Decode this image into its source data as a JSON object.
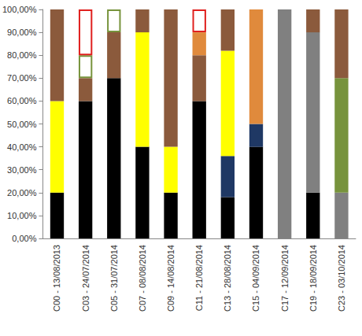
{
  "chart_data": {
    "type": "bar",
    "stacked": true,
    "grid": false,
    "data_labels": false,
    "categories": [
      "C00 - 13/08/2013",
      "C03 - 24/07/2014",
      "C05 - 31/07/2014",
      "C07 - 08/08/2014",
      "C09 - 14/08/2014",
      "C11 - 21/08/2014",
      "C13 - 28/08/2014",
      "C15 - 04/09/2014",
      "C17 - 12/09/2014",
      "C19 - 18/09/2014",
      "C23 - 03/10/2014"
    ],
    "ylim": [
      0,
      100
    ],
    "yticks": [
      {
        "value": 0,
        "label": "0,00%"
      },
      {
        "value": 10,
        "label": "10,00%"
      },
      {
        "value": 20,
        "label": "20,00%"
      },
      {
        "value": 30,
        "label": "30,00%"
      },
      {
        "value": 40,
        "label": "40,00%"
      },
      {
        "value": 50,
        "label": "50,00%"
      },
      {
        "value": 60,
        "label": "60,00%"
      },
      {
        "value": 70,
        "label": "70,00%"
      },
      {
        "value": 80,
        "label": "80,00%"
      },
      {
        "value": 90,
        "label": "90,00%"
      },
      {
        "value": 100,
        "label": "100,00%"
      }
    ],
    "series": [
      {
        "color": "#000000",
        "values": [
          20,
          60,
          70,
          40,
          20,
          60,
          18,
          40,
          null,
          20,
          null
        ]
      },
      {
        "color": "#1f3864",
        "values": [
          null,
          null,
          null,
          null,
          null,
          null,
          18,
          10,
          null,
          null,
          null
        ]
      },
      {
        "color": "#ffff00",
        "values": [
          40,
          null,
          null,
          50,
          20,
          null,
          46,
          null,
          null,
          null,
          null
        ]
      },
      {
        "color": "#808080",
        "values": [
          null,
          null,
          null,
          null,
          null,
          null,
          null,
          null,
          100,
          70,
          20
        ]
      },
      {
        "color": "#77933c",
        "values": [
          null,
          null,
          null,
          null,
          null,
          null,
          null,
          null,
          null,
          null,
          50
        ]
      },
      {
        "color": "#8b5a3c",
        "values": [
          40,
          10,
          20,
          10,
          60,
          20,
          18,
          null,
          null,
          10,
          30
        ]
      },
      {
        "color": "#e08a3c",
        "values": [
          null,
          null,
          null,
          null,
          null,
          10,
          null,
          50,
          null,
          null,
          null
        ]
      },
      {
        "color": "#77933c",
        "line_style": "outline",
        "values": [
          null,
          10,
          10,
          null,
          null,
          null,
          null,
          null,
          null,
          null,
          null
        ]
      },
      {
        "color": "#e0201e",
        "line_style": "outline",
        "values": [
          null,
          20,
          null,
          null,
          null,
          10,
          null,
          null,
          null,
          null,
          null
        ]
      }
    ]
  }
}
